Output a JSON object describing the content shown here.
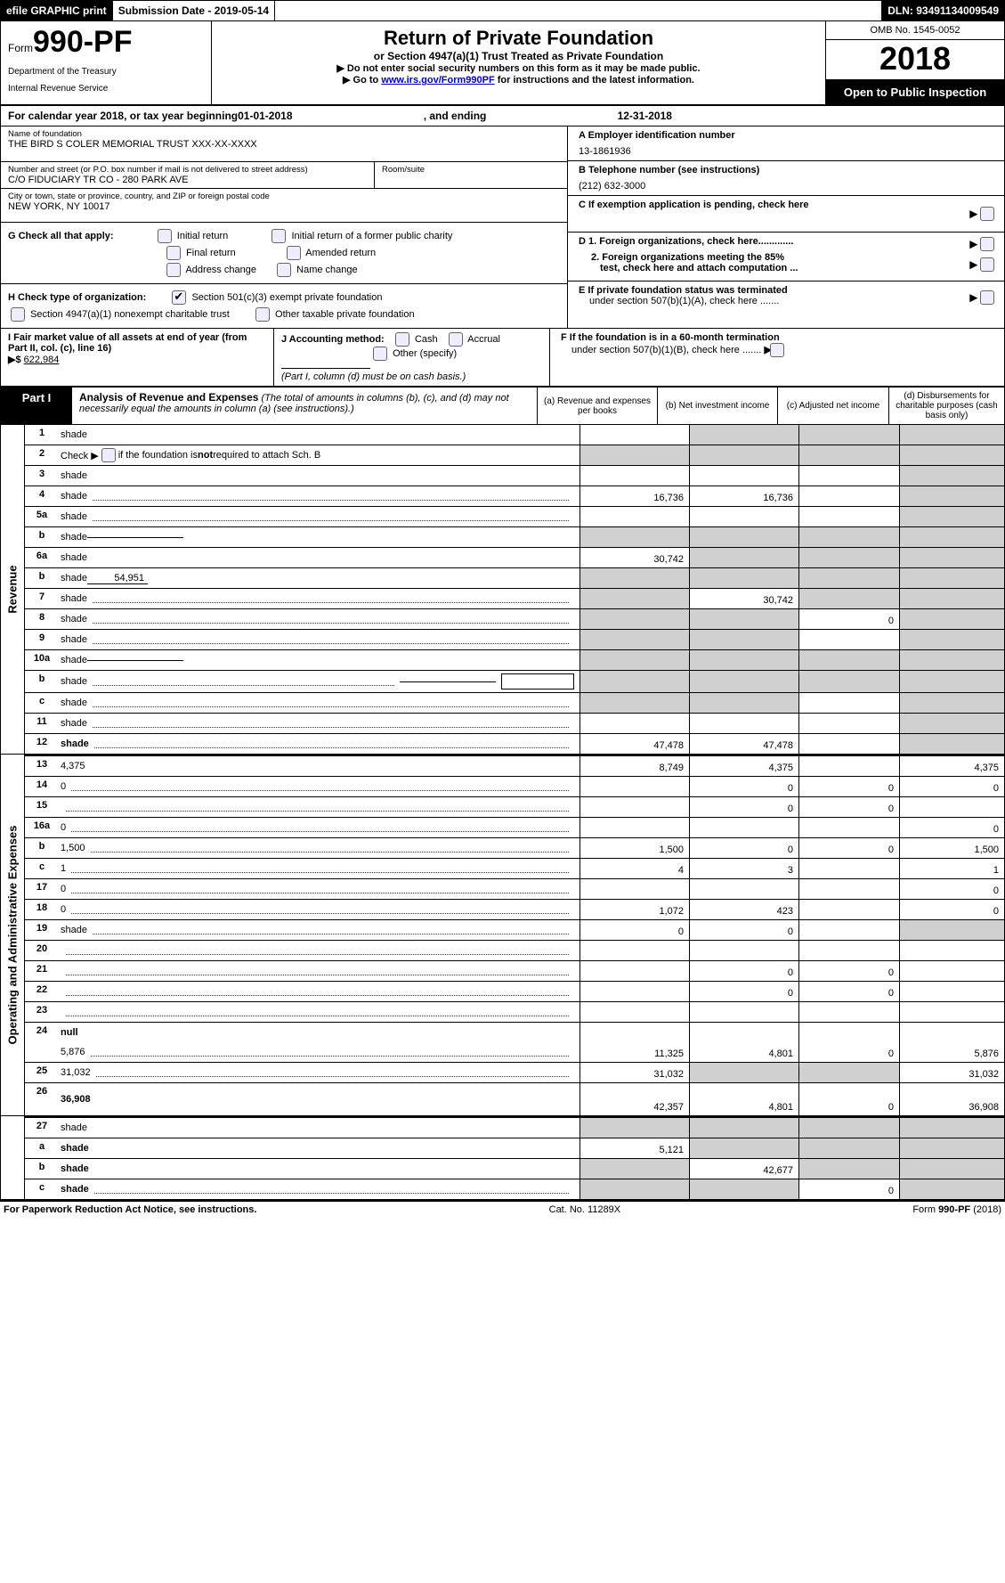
{
  "topbar": {
    "efile": "efile GRAPHIC print",
    "submission_label": "Submission Date - ",
    "submission_date": "2019-05-14",
    "dln_label": "DLN: ",
    "dln": "93491134009549"
  },
  "header": {
    "form_prefix": "Form",
    "form_number": "990-PF",
    "dept1": "Department of the Treasury",
    "dept2": "Internal Revenue Service",
    "title": "Return of Private Foundation",
    "subtitle": "or Section 4947(a)(1) Trust Treated as Private Foundation",
    "warn": "▶ Do not enter social security numbers on this form as it may be made public.",
    "goto_pre": "▶ Go to ",
    "goto_link": "www.irs.gov/Form990PF",
    "goto_post": " for instructions and the latest information.",
    "omb": "OMB No. 1545-0052",
    "year": "2018",
    "openpub": "Open to Public Inspection"
  },
  "calyear": {
    "pre": "For calendar year 2018, or tax year beginning ",
    "begin": "01-01-2018",
    "mid": ", and ending ",
    "end": "12-31-2018"
  },
  "entity": {
    "name_lbl": "Name of foundation",
    "name": "THE BIRD S COLER MEMORIAL TRUST XXX-XX-XXXX",
    "addr_lbl": "Number and street (or P.O. box number if mail is not delivered to street address)",
    "addr": "C/O FIDUCIARY TR CO - 280 PARK AVE",
    "room_lbl": "Room/suite",
    "city_lbl": "City or town, state or province, country, and ZIP or foreign postal code",
    "city": "NEW YORK, NY  10017",
    "A_lbl": "A Employer identification number",
    "A_val": "13-1861936",
    "B_lbl": "B Telephone number (see instructions)",
    "B_val": "(212) 632-3000",
    "C_lbl": "C  If exemption application is pending, check here",
    "D1": "D 1. Foreign organizations, check here.............",
    "D2a": "2. Foreign organizations meeting the 85%",
    "D2b": "test, check here and attach computation ...",
    "E1": "E  If private foundation status was terminated",
    "E2": "under section 507(b)(1)(A), check here .......",
    "F1": "F  If the foundation is in a 60-month termination",
    "F2": "under section 507(b)(1)(B), check here .......",
    "G_lbl": "G Check all that apply:",
    "G_opts": [
      "Initial return",
      "Initial return of a former public charity",
      "Final return",
      "Amended return",
      "Address change",
      "Name change"
    ],
    "H_lbl": "H Check type of organization:",
    "H_opt1": "Section 501(c)(3) exempt private foundation",
    "H_opt2": "Section 4947(a)(1) nonexempt charitable trust",
    "H_opt3": "Other taxable private foundation",
    "I_lbl": "I Fair market value of all assets at end of year (from Part II, col. (c), line 16)",
    "I_arrow": "▶$ ",
    "I_val": "622,984",
    "J_lbl": "J Accounting method:",
    "J_cash": "Cash",
    "J_accrual": "Accrual",
    "J_other": "Other (specify)",
    "J_note": "(Part I, column (d) must be on cash basis.)"
  },
  "part1": {
    "label": "Part I",
    "title": "Analysis of Revenue and Expenses",
    "title_note": "(The total of amounts in columns (b), (c), and (d) may not necessarily equal the amounts in column (a) (see instructions).)",
    "col_a": "(a)   Revenue and expenses per books",
    "col_b": "(b)   Net investment income",
    "col_c": "(c)   Adjusted net income",
    "col_d": "(d)   Disbursements for charitable purposes (cash basis only)"
  },
  "vlabels": {
    "revenue": "Revenue",
    "opex": "Operating and Administrative Expenses"
  },
  "rows": [
    {
      "n": "1",
      "d": "shade",
      "a": "",
      "b": "shade",
      "c": "shade"
    },
    {
      "n": "2",
      "d": "shade",
      "a": "shade",
      "b": "shade",
      "c": "shade",
      "checkbox": true
    },
    {
      "n": "3",
      "d": "shade",
      "a": "",
      "b": "",
      "c": ""
    },
    {
      "n": "4",
      "d": "shade",
      "a": "16,736",
      "b": "16,736",
      "c": "",
      "dots": true
    },
    {
      "n": "5a",
      "d": "shade",
      "a": "",
      "b": "",
      "c": "",
      "dots": true
    },
    {
      "n": "b",
      "d": "shade",
      "a": "shade",
      "b": "shade",
      "c": "shade",
      "inset": true
    },
    {
      "n": "6a",
      "d": "shade",
      "a": "30,742",
      "b": "shade",
      "c": "shade"
    },
    {
      "n": "b",
      "d": "shade",
      "a": "shade",
      "b": "shade",
      "c": "shade",
      "inline": "54,951"
    },
    {
      "n": "7",
      "d": "shade",
      "a": "shade",
      "b": "30,742",
      "c": "shade",
      "dots": true
    },
    {
      "n": "8",
      "d": "shade",
      "a": "shade",
      "b": "shade",
      "c": "0",
      "dots": true
    },
    {
      "n": "9",
      "d": "shade",
      "a": "shade",
      "b": "shade",
      "c": "",
      "dots": true
    },
    {
      "n": "10a",
      "d": "shade",
      "a": "shade",
      "b": "shade",
      "c": "shade",
      "inset": true
    },
    {
      "n": "b",
      "d": "shade",
      "a": "shade",
      "b": "shade",
      "c": "shade",
      "inset": true,
      "box": true,
      "dots": true
    },
    {
      "n": "c",
      "d": "shade",
      "a": "shade",
      "b": "shade",
      "c": "",
      "dots": true
    },
    {
      "n": "11",
      "d": "shade",
      "a": "",
      "b": "",
      "c": "",
      "dots": true
    },
    {
      "n": "12",
      "d": "shade",
      "a": "47,478",
      "b": "47,478",
      "c": "",
      "dots": true,
      "bold": true
    }
  ],
  "oprows": [
    {
      "n": "13",
      "d": "4,375",
      "a": "8,749",
      "b": "4,375",
      "c": "",
      "thick": true
    },
    {
      "n": "14",
      "d": "0",
      "a": "",
      "b": "0",
      "c": "0",
      "dots": true
    },
    {
      "n": "15",
      "d": "",
      "a": "",
      "b": "0",
      "c": "0",
      "dots": true
    },
    {
      "n": "16a",
      "d": "0",
      "a": "",
      "b": "",
      "c": "",
      "dots": true
    },
    {
      "n": "b",
      "d": "1,500",
      "a": "1,500",
      "b": "0",
      "c": "0",
      "dots": true
    },
    {
      "n": "c",
      "d": "1",
      "a": "4",
      "b": "3",
      "c": "",
      "dots": true
    },
    {
      "n": "17",
      "d": "0",
      "a": "",
      "b": "",
      "c": "",
      "dots": true
    },
    {
      "n": "18",
      "d": "0",
      "a": "1,072",
      "b": "423",
      "c": "",
      "dots": true
    },
    {
      "n": "19",
      "d": "shade",
      "a": "0",
      "b": "0",
      "c": "",
      "dots": true
    },
    {
      "n": "20",
      "d": "",
      "a": "",
      "b": "",
      "c": "",
      "dots": true
    },
    {
      "n": "21",
      "d": "",
      "a": "",
      "b": "0",
      "c": "0",
      "dots": true
    },
    {
      "n": "22",
      "d": "",
      "a": "",
      "b": "0",
      "c": "0",
      "dots": true
    },
    {
      "n": "23",
      "d": "",
      "a": "",
      "b": "",
      "c": "",
      "dots": true
    },
    {
      "n": "24",
      "d": "null",
      "a": "null",
      "b": "null",
      "c": "null",
      "bold": true,
      "noamt": true
    },
    {
      "n": "",
      "d": "5,876",
      "a": "11,325",
      "b": "4,801",
      "c": "0",
      "dots": true
    },
    {
      "n": "25",
      "d": "31,032",
      "a": "31,032",
      "b": "shade",
      "c": "shade",
      "dots": true
    },
    {
      "n": "26",
      "d": "36,908",
      "a": "42,357",
      "b": "4,801",
      "c": "0",
      "bold": true,
      "tall": true
    }
  ],
  "finalrows": [
    {
      "n": "27",
      "d": "shade",
      "a": "shade",
      "b": "shade",
      "c": "shade",
      "thick": true
    },
    {
      "n": "a",
      "d": "shade",
      "a": "5,121",
      "b": "shade",
      "c": "shade",
      "bold": true
    },
    {
      "n": "b",
      "d": "shade",
      "a": "shade",
      "b": "42,677",
      "c": "shade",
      "bold": true
    },
    {
      "n": "c",
      "d": "shade",
      "a": "shade",
      "b": "shade",
      "c": "0",
      "bold": true,
      "dots": true
    }
  ],
  "footer": {
    "left": "For Paperwork Reduction Act Notice, see instructions.",
    "mid": "Cat. No. 11289X",
    "right": "Form 990-PF (2018)"
  }
}
